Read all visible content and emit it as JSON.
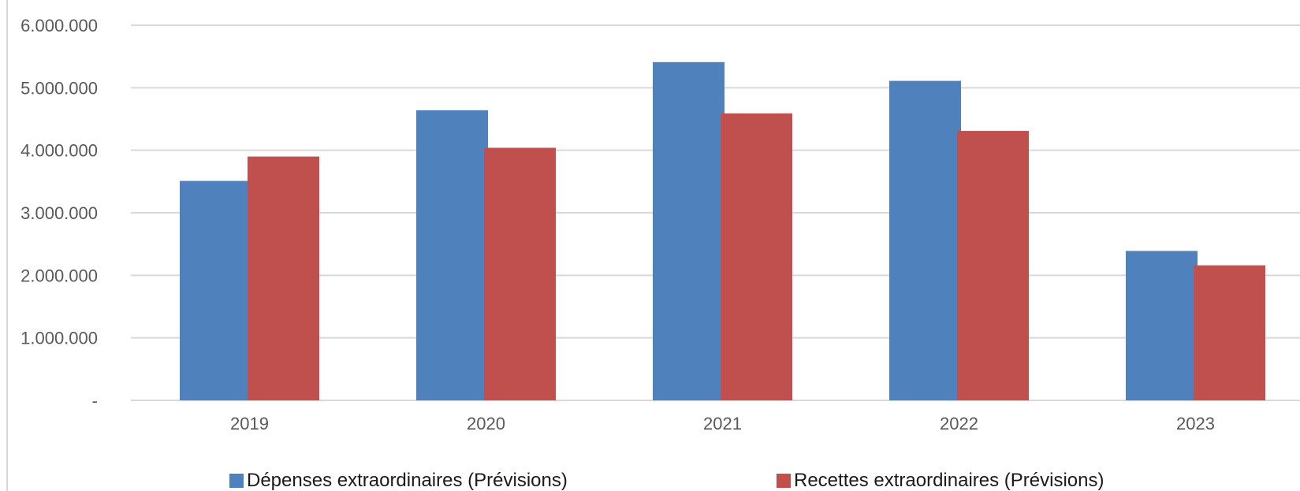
{
  "chart_data": {
    "type": "bar",
    "categories": [
      "2019",
      "2020",
      "2021",
      "2022",
      "2023"
    ],
    "series": [
      {
        "name": "Dépenses extraordinaires (Prévisions)",
        "color": "#4f81bd",
        "values": [
          3510000,
          4640000,
          5410000,
          5110000,
          2390000
        ]
      },
      {
        "name": "Recettes extraordinaires (Prévisions)",
        "color": "#c0504d",
        "values": [
          3900000,
          4040000,
          4590000,
          4310000,
          2160000
        ]
      }
    ],
    "yticks": [
      {
        "value": 0,
        "label": "-"
      },
      {
        "value": 1000000,
        "label": "1.000.000"
      },
      {
        "value": 2000000,
        "label": "2.000.000"
      },
      {
        "value": 3000000,
        "label": "3.000.000"
      },
      {
        "value": 4000000,
        "label": "4.000.000"
      },
      {
        "value": 5000000,
        "label": "5.000.000"
      },
      {
        "value": 6000000,
        "label": "6.000.000"
      }
    ],
    "ylim": [
      0,
      6000000
    ],
    "title": "",
    "xlabel": "",
    "ylabel": "",
    "grid": true,
    "gridline_color": "#d9d9d9",
    "legend_position": "bottom"
  }
}
